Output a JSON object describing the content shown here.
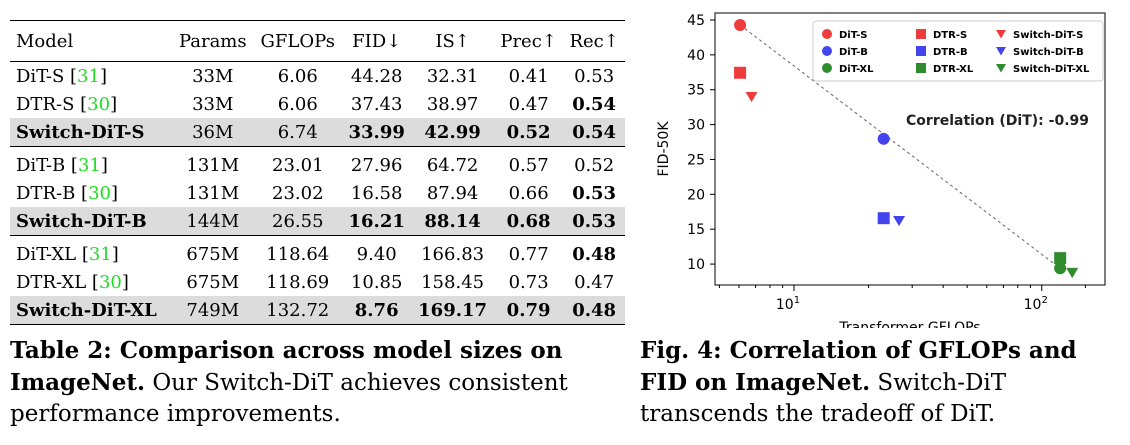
{
  "table": {
    "headers": [
      "Model",
      "Params",
      "GFLOPs",
      "FID↓",
      "IS↑",
      "Prec↑",
      "Rec↑"
    ],
    "groups": [
      {
        "rows": [
          {
            "model": "DiT-S",
            "ref": "31",
            "params": "33M",
            "gflops": "6.06",
            "fid": "44.28",
            "is": "32.31",
            "prec": "0.41",
            "rec": "0.53",
            "bold": [],
            "highlight": false
          },
          {
            "model": "DTR-S",
            "ref": "30",
            "params": "33M",
            "gflops": "6.06",
            "fid": "37.43",
            "is": "38.97",
            "prec": "0.47",
            "rec": "0.54",
            "bold": [
              "rec"
            ],
            "highlight": false
          },
          {
            "model": "Switch-DiT-S",
            "ref": "",
            "params": "36M",
            "gflops": "6.74",
            "fid": "33.99",
            "is": "42.99",
            "prec": "0.52",
            "rec": "0.54",
            "bold": [
              "model",
              "fid",
              "is",
              "prec",
              "rec"
            ],
            "highlight": true
          }
        ]
      },
      {
        "rows": [
          {
            "model": "DiT-B",
            "ref": "31",
            "params": "131M",
            "gflops": "23.01",
            "fid": "27.96",
            "is": "64.72",
            "prec": "0.57",
            "rec": "0.52",
            "bold": [],
            "highlight": false
          },
          {
            "model": "DTR-B",
            "ref": "30",
            "params": "131M",
            "gflops": "23.02",
            "fid": "16.58",
            "is": "87.94",
            "prec": "0.66",
            "rec": "0.53",
            "bold": [
              "rec"
            ],
            "highlight": false
          },
          {
            "model": "Switch-DiT-B",
            "ref": "",
            "params": "144M",
            "gflops": "26.55",
            "fid": "16.21",
            "is": "88.14",
            "prec": "0.68",
            "rec": "0.53",
            "bold": [
              "model",
              "fid",
              "is",
              "prec",
              "rec"
            ],
            "highlight": true
          }
        ]
      },
      {
        "rows": [
          {
            "model": "DiT-XL",
            "ref": "31",
            "params": "675M",
            "gflops": "118.64",
            "fid": "9.40",
            "is": "166.83",
            "prec": "0.77",
            "rec": "0.48",
            "bold": [
              "rec"
            ],
            "highlight": false
          },
          {
            "model": "DTR-XL",
            "ref": "30",
            "params": "675M",
            "gflops": "118.69",
            "fid": "10.85",
            "is": "158.45",
            "prec": "0.73",
            "rec": "0.47",
            "bold": [],
            "highlight": false
          },
          {
            "model": "Switch-DiT-XL",
            "ref": "",
            "params": "749M",
            "gflops": "132.72",
            "fid": "8.76",
            "is": "169.17",
            "prec": "0.79",
            "rec": "0.48",
            "bold": [
              "model",
              "fid",
              "is",
              "prec",
              "rec"
            ],
            "highlight": true
          }
        ]
      }
    ]
  },
  "table_caption": {
    "bold": "Table 2: Comparison across model sizes on ImageNet.",
    "text": " Our Switch-DiT achieves consistent performance improvements."
  },
  "figure_caption": {
    "bold": "Fig. 4: Correlation of GFLOPs and FID on ImageNet.",
    "text": " Switch-DiT transcends the tradeoff of DiT."
  },
  "chart_data": {
    "type": "scatter",
    "xlabel": "Transformer GFLOPs",
    "ylabel": "FID-50K",
    "xscale": "log",
    "xlim": [
      4.8,
      180
    ],
    "ylim": [
      7,
      46
    ],
    "yticks": [
      10,
      15,
      20,
      25,
      30,
      35,
      40,
      45
    ],
    "xticks": [
      {
        "value": 10,
        "base": "10",
        "exp": "1"
      },
      {
        "value": 100,
        "base": "10",
        "exp": "2"
      }
    ],
    "annotation": "Correlation (DiT): -0.99",
    "legend_position": "top-right",
    "trend_line": {
      "from": [
        6.06,
        44.28
      ],
      "to": [
        118.64,
        9.4
      ],
      "style": "dashed",
      "color": "#666666"
    },
    "series": [
      {
        "name": "DiT-S",
        "marker": "circle",
        "color": "#ee3b3b",
        "x": [
          6.06
        ],
        "y": [
          44.28
        ]
      },
      {
        "name": "DTR-S",
        "marker": "square",
        "color": "#ee3b3b",
        "x": [
          6.06
        ],
        "y": [
          37.43
        ]
      },
      {
        "name": "Switch-DiT-S",
        "marker": "triangle",
        "color": "#ee3b3b",
        "x": [
          6.74
        ],
        "y": [
          33.99
        ]
      },
      {
        "name": "DiT-B",
        "marker": "circle",
        "color": "#4444ee",
        "x": [
          23.01
        ],
        "y": [
          27.96
        ]
      },
      {
        "name": "DTR-B",
        "marker": "square",
        "color": "#4444ee",
        "x": [
          23.02
        ],
        "y": [
          16.58
        ]
      },
      {
        "name": "Switch-DiT-B",
        "marker": "triangle",
        "color": "#4444ee",
        "x": [
          26.55
        ],
        "y": [
          16.21
        ]
      },
      {
        "name": "DiT-XL",
        "marker": "circle",
        "color": "#2e8b2e",
        "x": [
          118.64
        ],
        "y": [
          9.4
        ]
      },
      {
        "name": "DTR-XL",
        "marker": "square",
        "color": "#2e8b2e",
        "x": [
          118.69
        ],
        "y": [
          10.85
        ]
      },
      {
        "name": "Switch-DiT-XL",
        "marker": "triangle",
        "color": "#2e8b2e",
        "x": [
          132.72
        ],
        "y": [
          8.76
        ]
      }
    ]
  }
}
